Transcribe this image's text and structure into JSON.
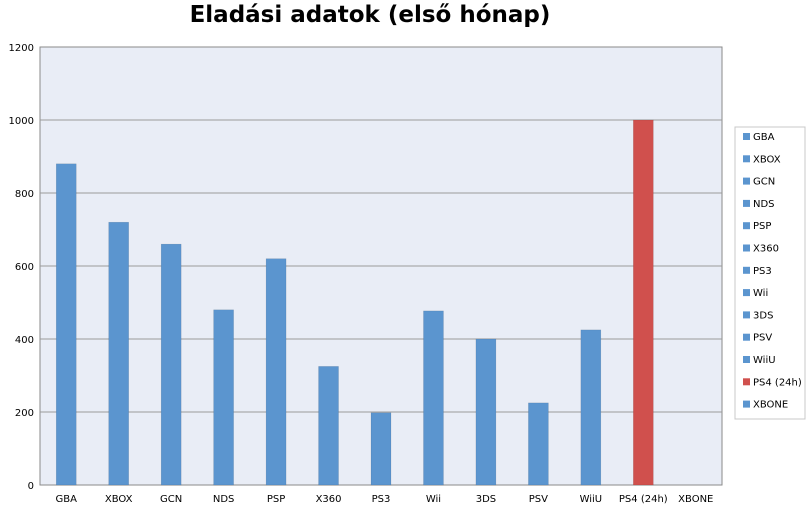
{
  "chart_data": {
    "type": "bar",
    "title": "Eladási adatok (első hónap)",
    "xlabel": "",
    "ylabel": "",
    "ylim": [
      0,
      1200
    ],
    "yticks": [
      0,
      200,
      400,
      600,
      800,
      1000,
      1200
    ],
    "grid": true,
    "legend_position": "right",
    "categories": [
      "GBA",
      "XBOX",
      "GCN",
      "NDS",
      "PSP",
      "X360",
      "PS3",
      "Wii",
      "3DS",
      "PSV",
      "WiiU",
      "PS4 (24h)",
      "XBONE"
    ],
    "values": [
      880,
      720,
      660,
      480,
      620,
      325,
      198,
      477,
      400,
      225,
      425,
      1000,
      0
    ],
    "colors": [
      "#5b95cf",
      "#5b95cf",
      "#5b95cf",
      "#5b95cf",
      "#5b95cf",
      "#5b95cf",
      "#5b95cf",
      "#5b95cf",
      "#5b95cf",
      "#5b95cf",
      "#5b95cf",
      "#d0504d",
      "#5b95cf"
    ],
    "plot_background": "#e9edf6"
  }
}
